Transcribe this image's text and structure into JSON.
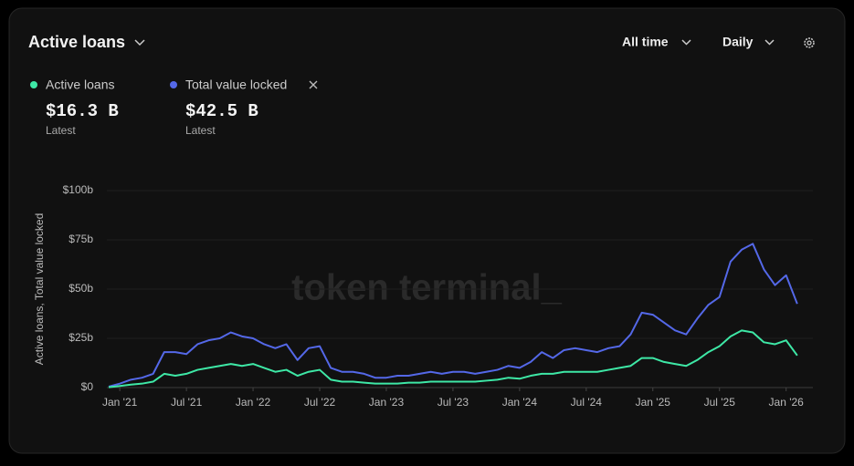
{
  "chart_data": {
    "type": "line",
    "title": "Active loans",
    "controls": [
      "All time",
      "Daily"
    ],
    "watermark": "token terminal_",
    "latest_caption": "Latest",
    "latest_labels": [
      "$16.3 B",
      "$42.5 B"
    ],
    "y_label": "Active loans, Total value locked",
    "x": [
      "2020-12",
      "2021-01",
      "2021-02",
      "2021-03",
      "2021-04",
      "2021-05",
      "2021-06",
      "2021-07",
      "2021-08",
      "2021-09",
      "2021-10",
      "2021-11",
      "2021-12",
      "2022-01",
      "2022-02",
      "2022-03",
      "2022-04",
      "2022-05",
      "2022-06",
      "2022-07",
      "2022-08",
      "2022-09",
      "2022-10",
      "2022-11",
      "2022-12",
      "2023-01",
      "2023-02",
      "2023-03",
      "2023-04",
      "2023-05",
      "2023-06",
      "2023-07",
      "2023-08",
      "2023-09",
      "2023-10",
      "2023-11",
      "2023-12",
      "2024-01",
      "2024-02",
      "2024-03",
      "2024-04",
      "2024-05",
      "2024-06",
      "2024-07",
      "2024-08",
      "2024-09",
      "2024-10",
      "2024-11",
      "2024-12",
      "2025-01",
      "2025-02",
      "2025-03",
      "2025-04",
      "2025-05",
      "2025-06",
      "2025-07",
      "2025-08",
      "2025-09",
      "2025-10",
      "2025-11",
      "2025-12",
      "2026-01",
      "2026-02"
    ],
    "xlim": [
      "2020-12",
      "2026-03"
    ],
    "xticks": [
      {
        "value": "2021-01",
        "label": "Jan '21"
      },
      {
        "value": "2021-07",
        "label": "Jul '21"
      },
      {
        "value": "2022-01",
        "label": "Jan '22"
      },
      {
        "value": "2022-07",
        "label": "Jul '22"
      },
      {
        "value": "2023-01",
        "label": "Jan '23"
      },
      {
        "value": "2023-07",
        "label": "Jul '23"
      },
      {
        "value": "2024-01",
        "label": "Jan '24"
      },
      {
        "value": "2024-07",
        "label": "Jul '24"
      },
      {
        "value": "2025-01",
        "label": "Jan '25"
      },
      {
        "value": "2025-07",
        "label": "Jul '25"
      },
      {
        "value": "2026-01",
        "label": "Jan '26"
      }
    ],
    "ylim": [
      0,
      100
    ],
    "yticks": [
      {
        "value": 0,
        "label": "$0"
      },
      {
        "value": 25,
        "label": "$25b"
      },
      {
        "value": 50,
        "label": "$50b"
      },
      {
        "value": 75,
        "label": "$75b"
      },
      {
        "value": 100,
        "label": "$100b"
      }
    ],
    "grid": true,
    "series": [
      {
        "name": "Active loans",
        "color": "#3ee8a6",
        "values": [
          0.2,
          0.8,
          1.5,
          2,
          3,
          7,
          6,
          7,
          9,
          10,
          11,
          12,
          11,
          12,
          10,
          8,
          9,
          6,
          8,
          9,
          4,
          3,
          3,
          2.5,
          2,
          2,
          2,
          2.5,
          2.5,
          3,
          3,
          3,
          3,
          3,
          3.5,
          4,
          5,
          4.5,
          6,
          7,
          7,
          8,
          8,
          8,
          8,
          9,
          10,
          11,
          15,
          15,
          13,
          12,
          11,
          14,
          18,
          21,
          26,
          29,
          28,
          23,
          22,
          24,
          16.3
        ]
      },
      {
        "name": "Total value locked",
        "color": "#5468e8",
        "values": [
          0.5,
          2,
          4,
          5,
          7,
          18,
          18,
          17,
          22,
          24,
          25,
          28,
          26,
          25,
          22,
          20,
          22,
          14,
          20,
          21,
          10,
          8,
          8,
          7,
          5,
          5,
          6,
          6,
          7,
          8,
          7,
          8,
          8,
          7,
          8,
          9,
          11,
          10,
          13,
          18,
          15,
          19,
          20,
          19,
          18,
          20,
          21,
          27,
          38,
          37,
          33,
          29,
          27,
          35,
          42,
          46,
          64,
          70,
          73,
          60,
          52,
          57,
          42.5
        ]
      }
    ]
  }
}
